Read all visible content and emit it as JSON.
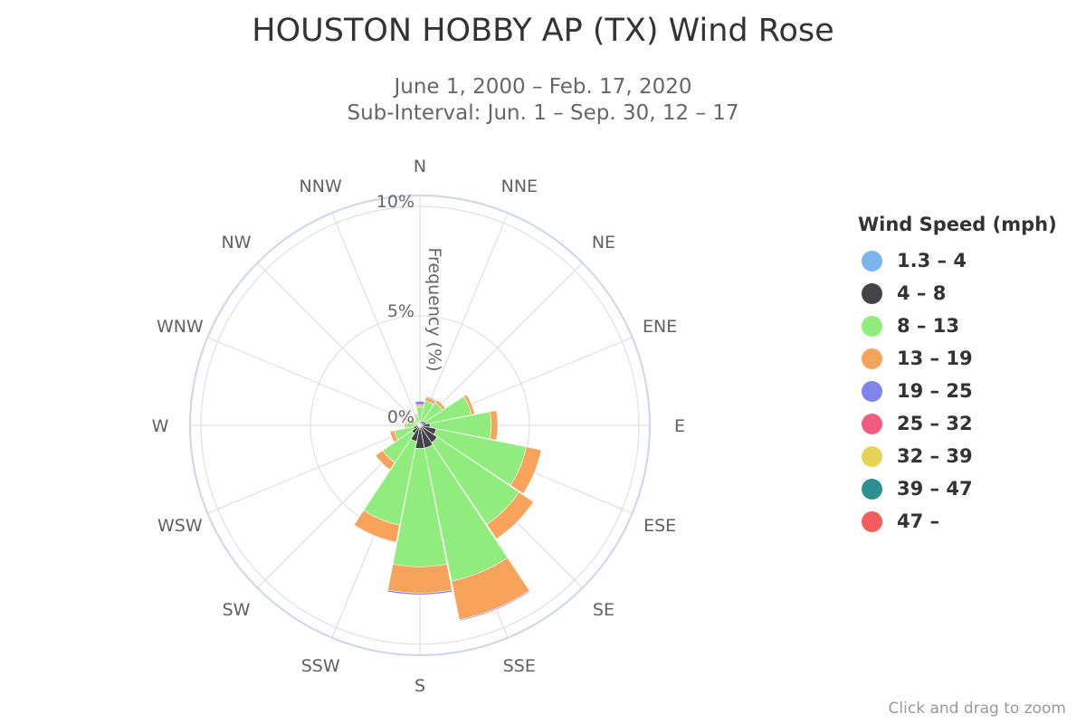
{
  "title": "HOUSTON HOBBY AP (TX) Wind Rose",
  "subtitle_lines": [
    "June 1, 2000 – Feb. 17, 2020",
    "Sub-Interval: Jun. 1 – Sep. 30, 12 – 17"
  ],
  "zoom_hint": "Click and drag to zoom",
  "chart_data": {
    "type": "windrose",
    "radial_axis_label": "Frequency (%)",
    "radial_ticks": [
      "0%",
      "5%",
      "10%"
    ],
    "radial_range": [
      0,
      10.5
    ],
    "grid": true,
    "legend_position": "right",
    "directions": [
      "N",
      "NNE",
      "NE",
      "ENE",
      "E",
      "ESE",
      "SE",
      "SSE",
      "S",
      "SSW",
      "SW",
      "WSW",
      "W",
      "WNW",
      "NW",
      "NNW"
    ],
    "legend": {
      "title": "Wind Speed (mph)",
      "items": [
        {
          "label": "1.3 – 4",
          "color": "#7cb5ec"
        },
        {
          "label": "4 – 8",
          "color": "#434348"
        },
        {
          "label": "8 – 13",
          "color": "#90ed7d"
        },
        {
          "label": "13 – 19",
          "color": "#f7a35c"
        },
        {
          "label": "19 – 25",
          "color": "#8085e9"
        },
        {
          "label": "25 – 32",
          "color": "#f15c80"
        },
        {
          "label": "32 – 39",
          "color": "#e4d354"
        },
        {
          "label": "39 – 47",
          "color": "#2b908f"
        },
        {
          "label": "47 –",
          "color": "#f45b5b"
        }
      ]
    },
    "series": [
      {
        "name": "1.3 – 4",
        "values": [
          0.05,
          0.05,
          0.05,
          0.05,
          0.06,
          0.06,
          0.06,
          0.06,
          0.06,
          0.05,
          0.05,
          0.05,
          0.05,
          0.04,
          0.04,
          0.04
        ]
      },
      {
        "name": "4 – 8",
        "values": [
          0.1,
          0.15,
          0.2,
          0.25,
          0.4,
          0.7,
          0.9,
          1.0,
          1.0,
          0.7,
          0.4,
          0.25,
          0.15,
          0.1,
          0.08,
          0.08
        ]
      },
      {
        "name": "8 – 13",
        "values": [
          0.7,
          0.95,
          1.0,
          2.1,
          2.8,
          4.2,
          4.5,
          6.2,
          5.4,
          3.9,
          1.6,
          0.9,
          0.4,
          0.3,
          0.2,
          0.3
        ]
      },
      {
        "name": "13 – 19",
        "values": [
          0.1,
          0.15,
          0.15,
          0.15,
          0.3,
          0.7,
          0.8,
          1.8,
          1.2,
          0.8,
          0.4,
          0.2,
          0.1,
          0.05,
          0.05,
          0.05
        ]
      },
      {
        "name": "19 – 25",
        "values": [
          0.15,
          0.05,
          0.02,
          0.02,
          0.02,
          0.02,
          0.02,
          0.05,
          0.08,
          0.03,
          0.02,
          0.02,
          0.01,
          0.01,
          0.01,
          0.05
        ]
      },
      {
        "name": "25 – 32",
        "values": [
          0,
          0,
          0,
          0,
          0,
          0,
          0,
          0,
          0,
          0,
          0,
          0,
          0,
          0,
          0,
          0
        ]
      },
      {
        "name": "32 – 39",
        "values": [
          0,
          0,
          0,
          0,
          0,
          0,
          0,
          0,
          0,
          0,
          0,
          0,
          0,
          0,
          0,
          0
        ]
      },
      {
        "name": "39 – 47",
        "values": [
          0,
          0,
          0,
          0,
          0,
          0,
          0,
          0,
          0,
          0,
          0,
          0,
          0,
          0,
          0,
          0
        ]
      },
      {
        "name": "47 –",
        "values": [
          0,
          0,
          0,
          0,
          0,
          0,
          0,
          0,
          0,
          0,
          0,
          0,
          0,
          0,
          0,
          0
        ]
      }
    ]
  }
}
